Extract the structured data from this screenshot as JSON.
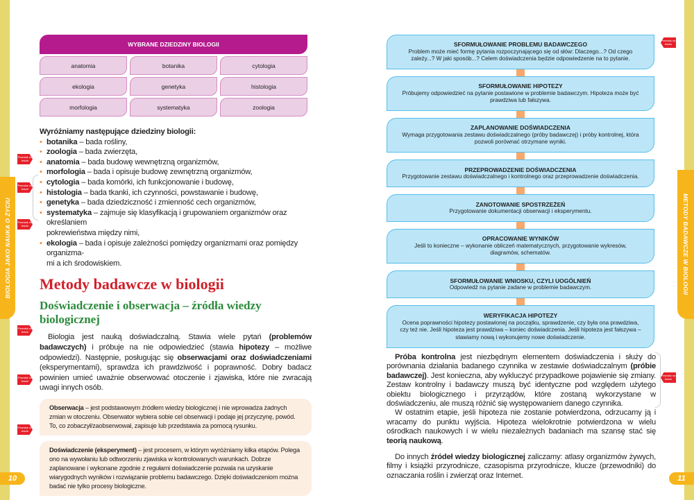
{
  "left_page": {
    "side_tab": "BIOLOGIA JAKO NAUKA O ŻYCIU",
    "page_number": "10",
    "marker_label": "Pewniak na teście",
    "table": {
      "title": "WYBRANE DZIEDZINY BIOLOGII",
      "cells": [
        "anatomia",
        "botanika",
        "cytologia",
        "ekologia",
        "genetyka",
        "histologia",
        "morfologia",
        "systematyka",
        "zoologia"
      ]
    },
    "list_heading": "Wyróżniamy następujące dziedziny biologii:",
    "list": [
      {
        "term": "botanika",
        "desc": " – bada rośliny,"
      },
      {
        "term": "zoologia",
        "desc": " – bada zwierzęta,"
      },
      {
        "term": "anatomia",
        "desc": " – bada budowę wewnętrzną organizmów,"
      },
      {
        "term": "morfologia",
        "desc": " – bada i opisuje budowę zewnętrzną organizmów,"
      },
      {
        "term": "cytologia",
        "desc": " – bada komórki, ich funkcjonowanie i budowę,"
      },
      {
        "term": "histologia",
        "desc": " – bada tkanki, ich czynności, powstawanie i budowę,"
      },
      {
        "term": "genetyka",
        "desc": " – bada dziedziczność i zmienność cech organizmów,"
      },
      {
        "term": "systematyka",
        "desc": " – zajmuje się klasyfikacją i grupowaniem organizmów oraz określaniem",
        "cont": "pokrewieństwa między nimi,"
      },
      {
        "term": "ekologia",
        "desc": " – bada i opisuje zależności pomiędzy organizmami oraz pomiędzy organizma-",
        "cont": "mi a ich środowiskiem."
      }
    ],
    "heading": "Metody badawcze w biologii",
    "subheading": "Doświadczenie i obserwacja – źródła wiedzy biologicznej",
    "intro": {
      "p1": "Biologia jest nauką doświadczalną. Stawia wiele pytań ",
      "b1": "(problemów badawczych)",
      "p2": " i próbuje na nie odpowiedzieć (stawia ",
      "b2": "hipotezy",
      "p3": " – możliwe odpowiedzi). Następnie, posługując się ",
      "b3": "obserwacjami oraz doświadczeniami",
      "p4": " (eksperymentami), sprawdza ich prawdziwość i poprawność. Dobry badacz powinien umieć uważnie obserwować otoczenie i zjawiska, które nie zwracają uwagi innych osób."
    },
    "box1": {
      "term": "Obserwacja",
      "text": " – jest podstawowym źródłem wiedzy biologicznej i nie wprowadza żadnych zmian w otoczeniu. Obserwator wybiera sobie cel obserwacji i podaje jej przyczynę, powód. To, co zobaczył/zaobserwował, zapisuje lub przedstawia za pomocą rysunku."
    },
    "box2": {
      "term": "Doświadczenie (eksperyment)",
      "text": " – jest procesem, w którym wyróżniamy kilka etapów. Polega ono na wywołaniu lub odtworzeniu zjawiska w kontrolowanych warunkach. Dobrze zaplanowane i wykonane zgodnie z regułami doświadczenie pozwala na uzyskanie wiarygodnych wyników i rozwiązanie problemu badawczego. Dzięki doświadczeniom można badać nie tylko procesy biologiczne."
    }
  },
  "right_page": {
    "side_tab": "METODY BADAWCZE W BIOLOGII",
    "page_number": "11",
    "marker_label": "Pewniak na teście",
    "flow": [
      {
        "title": "SFORMUŁOWANIE PROBLEMU BADAWCZEGO",
        "text": "Problem może mieć formę pytania rozpoczynającego się od słów: Dlaczego...? Od czego zależy...? W jaki sposób...?  Celem doświadczenia będzie odpowiedzenie na to pytanie."
      },
      {
        "title": "SFORMUŁOWANIE HIPOTEZY",
        "text": "Próbujemy odpowiedzieć na pytanie postawione w problemie badawczym. Hipoteza może być prawdziwa lub fałszywa."
      },
      {
        "title": "ZAPLANOWANIE DOŚWIADCZENIA",
        "text": "Wymaga przygotowania zestawu doświadczalnego (próby badawczej) i próby kontrolnej, która pozwoli porównać otrzymane wyniki."
      },
      {
        "title": "PRZEPROWADZENIE DOŚWIADCZENIA",
        "text": "Przygotowanie zestawu doświadczalnego i kontrolnego oraz przeprowadzenie doświadczenia."
      },
      {
        "title": "ZANOTOWANIE SPOSTRZEŻEŃ",
        "text": "Przygotowanie dokumentacji obserwacji i eksperymentu."
      },
      {
        "title": "OPRACOWANIE WYNIKÓW",
        "text": "Jeśli to konieczne – wykonanie obliczeń matematycznych, przygotowanie wykresów, diagramów, schematów."
      },
      {
        "title": "SFORMUŁOWANIE WNIOSKU, CZYLI UOGÓLNIEŃ",
        "text": "Odpowiedź na pytanie zadane w problemie badawczym."
      },
      {
        "title": "WERYFIKACJA HIPOTEZY",
        "text": "Ocena poprawności hipotezy postawionej na początku, sprawdzenie, czy była ona prawdziwa, czy też nie. Jeśli hipoteza jest prawdziwa – koniec doświadczenia. Jeśli hipoteza jest fałszywa – stawiamy nową i wykonujemy nowe doświadczenie."
      }
    ],
    "p1": {
      "b1": "Próba kontrolna",
      "t1": " jest niezbędnym elementem doświadczenia i służy do porównania działania badanego czynnika w zestawie doświadczalnym ",
      "b2": "(próbie badawczej)",
      "t2": ". Jest konieczna, aby wykluczyć przypadkowe pojawienie się zmiany. Zestaw kontrolny i badawczy muszą być identyczne pod względem użytego obiektu biologicznego i przyrządów, które zostaną wykorzystane w doświadczeniu, ale muszą różnić się występowaniem danego czynnika."
    },
    "p2": {
      "t1": "W ostatnim etapie, jeśli hipoteza nie zostanie potwierdzona, odrzucamy ją i wracamy do punktu wyjścia. Hipoteza wielokrotnie potwierdzona w wielu ośrodkach naukowych i w wielu niezależnych badaniach ma szansę stać się ",
      "b1": "teorią naukową",
      "t2": "."
    },
    "p3": {
      "t1": "Do innych ",
      "b1": "źródeł wiedzy biologicznej",
      "t2": " zaliczamy: atlasy organizmów żywych, filmy i książki przyrodnicze, czasopisma przyrodnicze, klucze (przewodniki) do oznaczania roślin i zwierząt oraz Internet."
    }
  }
}
